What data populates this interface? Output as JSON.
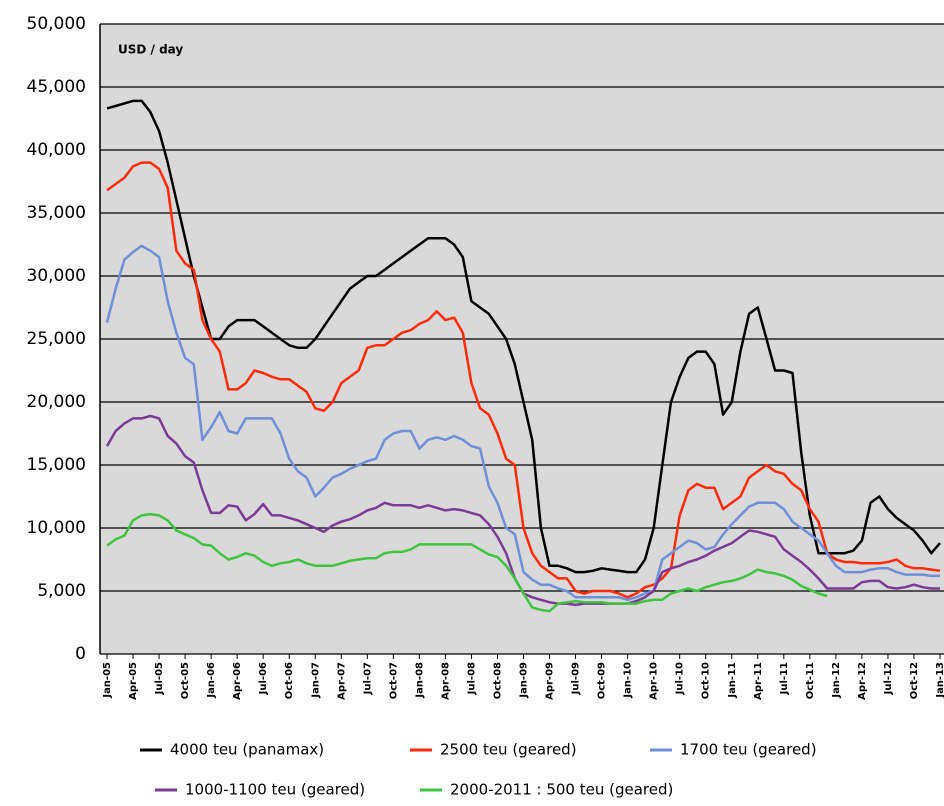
{
  "chart_data": {
    "type": "line",
    "annotation": "USD / day",
    "categories": [
      "Jan-05",
      null,
      null,
      "Apr-05",
      null,
      null,
      "Jul-05",
      null,
      null,
      "Oct-05",
      null,
      null,
      "Jan-06",
      null,
      null,
      "Apr-06",
      null,
      null,
      "Jul-06",
      null,
      null,
      "Oct-06",
      null,
      null,
      "Jan-07",
      null,
      null,
      "Apr-07",
      null,
      null,
      "Jul-07",
      null,
      null,
      "Oct-07",
      null,
      null,
      "Jan-08",
      null,
      null,
      "Apr-08",
      null,
      null,
      "Jul-08",
      null,
      null,
      "Oct-08",
      null,
      null,
      "Jan-09",
      null,
      null,
      "Apr-09",
      null,
      null,
      "Jul-09",
      null,
      null,
      "Oct-09",
      null,
      null,
      "Jan-10",
      null,
      null,
      "Apr-10",
      null,
      null,
      "Jul-10",
      null,
      null,
      "Oct-10",
      null,
      null,
      "Jan-11",
      null,
      null,
      "Apr-11",
      null,
      null,
      "Jul-11",
      null,
      null,
      "Oct-11",
      null,
      null,
      "Jan-12",
      null,
      null,
      "Apr-12",
      null,
      null,
      "Jul-12",
      null,
      null,
      "Oct-12",
      null,
      null,
      "Jan-13"
    ],
    "series": [
      {
        "name": "4000 teu (panamax)",
        "color": "#000000",
        "values": [
          43300,
          43500,
          43700,
          43900,
          43900,
          43000,
          41500,
          39000,
          36000,
          33000,
          30000,
          27500,
          25000,
          25000,
          26000,
          26500,
          26500,
          26500,
          26000,
          25500,
          25000,
          24500,
          24300,
          24300,
          25000,
          26000,
          27000,
          28000,
          29000,
          29500,
          30000,
          30000,
          30500,
          31000,
          31500,
          32000,
          32500,
          33000,
          33000,
          33000,
          32500,
          31500,
          28000,
          27500,
          27000,
          26000,
          25000,
          23000,
          20000,
          17000,
          10000,
          7000,
          7000,
          6800,
          6500,
          6500,
          6600,
          6800,
          6700,
          6600,
          6500,
          6500,
          7500,
          10000,
          15000,
          20000,
          22000,
          23500,
          24000,
          24000,
          23000,
          19000,
          20000,
          24000,
          27000,
          27500,
          25000,
          22500,
          22500,
          22300,
          16000,
          11000,
          8000,
          8000,
          8000,
          8000,
          8200,
          9000,
          12000,
          12500,
          11500,
          10800,
          10300,
          9800,
          9000,
          8000,
          8800
        ]
      },
      {
        "name": "2500 teu (geared)",
        "color": "#ff2a0a",
        "values": [
          36800,
          37300,
          37800,
          38700,
          39000,
          39000,
          38500,
          37000,
          32000,
          31000,
          30500,
          26500,
          25000,
          24000,
          21000,
          21000,
          21500,
          22500,
          22300,
          22000,
          21800,
          21800,
          21300,
          20800,
          19500,
          19300,
          20000,
          21500,
          22000,
          22500,
          24300,
          24500,
          24500,
          25000,
          25500,
          25700,
          26200,
          26500,
          27200,
          26500,
          26700,
          25500,
          21500,
          19500,
          19000,
          17500,
          15500,
          15000,
          10000,
          8000,
          7000,
          6500,
          6000,
          6000,
          5000,
          4800,
          5000,
          5000,
          5000,
          4800,
          4500,
          4800,
          5300,
          5500,
          6000,
          6800,
          11000,
          13000,
          13500,
          13200,
          13200,
          11500,
          12000,
          12500,
          14000,
          14500,
          15000,
          14500,
          14300,
          13500,
          13000,
          11500,
          10500,
          8000,
          7500,
          7300,
          7300,
          7200,
          7200,
          7200,
          7300,
          7500,
          7000,
          6800,
          6800,
          6700,
          6600
        ]
      },
      {
        "name": "1700 teu (geared)",
        "color": "#6f8fd8",
        "values": [
          26300,
          29000,
          31300,
          31900,
          32400,
          32000,
          31500,
          28000,
          25500,
          23500,
          23000,
          17000,
          18000,
          19200,
          17700,
          17500,
          18700,
          18700,
          18700,
          18700,
          17500,
          15500,
          14500,
          14000,
          12500,
          13200,
          14000,
          14300,
          14700,
          15000,
          15300,
          15500,
          17000,
          17500,
          17700,
          17700,
          16300,
          17000,
          17200,
          17000,
          17300,
          17000,
          16500,
          16300,
          13300,
          12000,
          10000,
          9500,
          6500,
          5900,
          5500,
          5500,
          5200,
          5000,
          4500,
          4500,
          4500,
          4500,
          4500,
          4500,
          4300,
          4500,
          4800,
          5000,
          7500,
          8000,
          8500,
          9000,
          8800,
          8300,
          8500,
          9500,
          10300,
          11000,
          11700,
          12000,
          12000,
          12000,
          11500,
          10500,
          10000,
          9500,
          9000,
          8000,
          7000,
          6500,
          6500,
          6500,
          6700,
          6800,
          6800,
          6500,
          6300,
          6300,
          6300,
          6200,
          6200
        ]
      },
      {
        "name": "1000-1100 teu (geared)",
        "color": "#7a3a96",
        "values": [
          16500,
          17700,
          18300,
          18700,
          18700,
          18900,
          18700,
          17300,
          16700,
          15700,
          15200,
          13000,
          11200,
          11200,
          11800,
          11700,
          10600,
          11100,
          11900,
          11000,
          11000,
          10800,
          10600,
          10300,
          10000,
          9700,
          10200,
          10500,
          10700,
          11000,
          11400,
          11600,
          12000,
          11800,
          11800,
          11800,
          11600,
          11800,
          11600,
          11400,
          11500,
          11400,
          11200,
          11000,
          10300,
          9300,
          8000,
          6000,
          4800,
          4500,
          4300,
          4100,
          4000,
          4000,
          3900,
          4000,
          4000,
          4000,
          4000,
          4000,
          4000,
          4200,
          4500,
          5000,
          6500,
          6800,
          7000,
          7300,
          7500,
          7800,
          8200,
          8500,
          8800,
          9300,
          9800,
          9700,
          9500,
          9300,
          8300,
          7800,
          7300,
          6700,
          6000,
          5200,
          5200,
          5200,
          5200,
          5700,
          5800,
          5800,
          5300,
          5200,
          5300,
          5500,
          5300,
          5200,
          5200
        ]
      },
      {
        "name": "2000-2011 : 500 teu (geared)",
        "color": "#3fc43f",
        "values": [
          8600,
          9100,
          9400,
          10600,
          11000,
          11100,
          11000,
          10600,
          9800,
          9500,
          9200,
          8700,
          8600,
          8000,
          7500,
          7700,
          8000,
          7800,
          7300,
          7000,
          7200,
          7300,
          7500,
          7200,
          7000,
          7000,
          7000,
          7200,
          7400,
          7500,
          7600,
          7600,
          8000,
          8100,
          8100,
          8300,
          8700,
          8700,
          8700,
          8700,
          8700,
          8700,
          8700,
          8300,
          7900,
          7700,
          7000,
          6000,
          4800,
          3700,
          3500,
          3400,
          4000,
          4100,
          4200,
          4100,
          4100,
          4100,
          4000,
          4000,
          4000,
          4000,
          4200,
          4300,
          4300,
          4800,
          5000,
          5200,
          5000,
          5300,
          5500,
          5700,
          5800,
          6000,
          6300,
          6700,
          6500,
          6400,
          6200,
          5900,
          5400,
          5100,
          4800,
          4600,
          null,
          null,
          null,
          null,
          null,
          null,
          null,
          null,
          null,
          null,
          null,
          null,
          null
        ]
      }
    ],
    "ylim": [
      0,
      50000
    ],
    "yticks": [
      0,
      {
        "value": 5000,
        "label": "5,000"
      },
      {
        "value": 10000,
        "label": "10,000"
      },
      {
        "value": 15000,
        "label": "15,000"
      },
      {
        "value": 20000,
        "label": "20,000"
      },
      {
        "value": 25000,
        "label": "25,000"
      },
      {
        "value": 30000,
        "label": "30,000"
      },
      {
        "value": 35000,
        "label": "35,000"
      },
      {
        "value": 40000,
        "label": "40,000"
      },
      {
        "value": 45000,
        "label": "45,000"
      },
      {
        "value": 50000,
        "label": "50,000"
      }
    ],
    "grid": true,
    "background": "#d9d9d9"
  }
}
